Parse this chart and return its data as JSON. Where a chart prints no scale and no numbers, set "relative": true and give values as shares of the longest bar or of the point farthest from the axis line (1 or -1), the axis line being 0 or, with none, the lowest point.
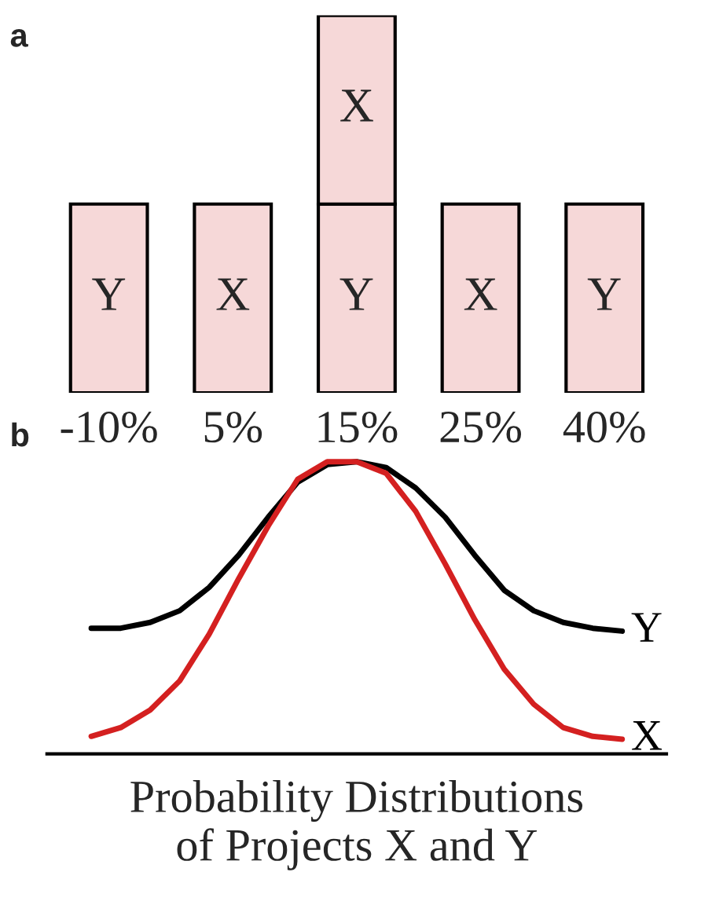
{
  "chart_data": [
    {
      "type": "bar",
      "title": "a",
      "relative": true,
      "stacked": true,
      "tick_labels": "x",
      "categories": [
        "-10%",
        "5%",
        "15%",
        "25%",
        "40%"
      ],
      "series": [
        {
          "color": "#f6d8d8",
          "values": [
            0.5,
            0.5,
            0.5,
            0.5,
            0.5
          ]
        },
        {
          "color": "#f6d8d8",
          "values": [
            null,
            null,
            0.5,
            null,
            null
          ]
        }
      ],
      "annotations": [
        "Y",
        "X",
        "Y",
        "X",
        "Y",
        "X"
      ]
    },
    {
      "type": "line",
      "title": "b",
      "relative": true,
      "tick_labels": false,
      "xlabel": "Probability Distributions\nof Projects X and Y",
      "categories": [
        null,
        null,
        null,
        null,
        null,
        null,
        null,
        null,
        null,
        null,
        null,
        null,
        null,
        null,
        null,
        null,
        null,
        null,
        null
      ],
      "series": [
        {
          "name": "Y",
          "color": "#000000",
          "values": [
            0.43,
            0.43,
            0.45,
            0.49,
            0.57,
            0.68,
            0.81,
            0.93,
            0.99,
            1.0,
            0.98,
            0.91,
            0.81,
            0.68,
            0.56,
            0.49,
            0.45,
            0.43,
            0.42
          ]
        },
        {
          "name": "X",
          "color": "#d42020",
          "values": [
            0.06,
            0.09,
            0.15,
            0.25,
            0.41,
            0.6,
            0.78,
            0.94,
            1.0,
            1.0,
            0.96,
            0.83,
            0.65,
            0.46,
            0.29,
            0.17,
            0.09,
            0.06,
            0.05
          ]
        }
      ]
    }
  ]
}
